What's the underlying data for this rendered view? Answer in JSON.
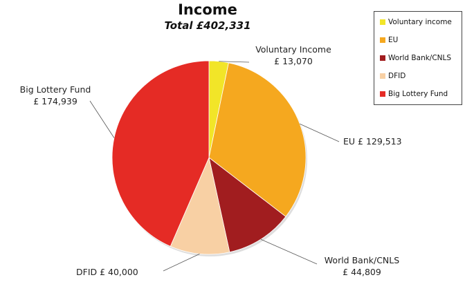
{
  "chart_data": {
    "type": "pie",
    "title": "Income",
    "subtitle": "Total £402,331",
    "slices": [
      {
        "legend": "Voluntary income",
        "label_lines": [
          "Voluntary Income",
          "£ 13,070"
        ],
        "value": 13070,
        "color": "#f2e528"
      },
      {
        "legend": "EU",
        "label_lines": [
          "EU £ 129,513"
        ],
        "value": 129513,
        "color": "#f5a81f"
      },
      {
        "legend": "World Bank/CNLS",
        "label_lines": [
          "World Bank/CNLS",
          "£ 44,809"
        ],
        "value": 44809,
        "color": "#a11d1f"
      },
      {
        "legend": "DFID",
        "label_lines": [
          "DFID £ 40,000"
        ],
        "value": 40000,
        "color": "#f8d0a4"
      },
      {
        "legend": "Big Lottery Fund",
        "label_lines": [
          "Big Lottery Fund",
          "£ 174,939"
        ],
        "value": 174939,
        "color": "#e52b25"
      }
    ],
    "start_angle": "top",
    "direction": "clockwise",
    "legend_position": "top-right"
  }
}
